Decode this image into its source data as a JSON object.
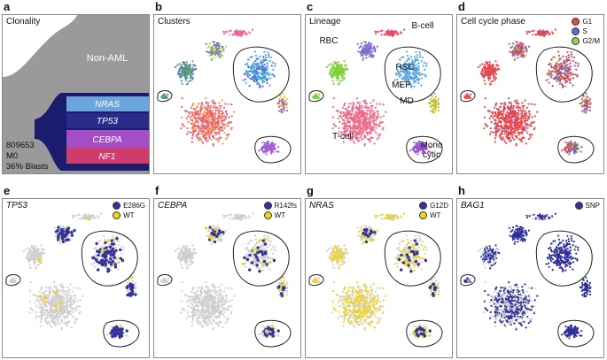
{
  "panels": {
    "a": {
      "letter": "a",
      "title": "Clonality",
      "non_aml_label": "Non-AML",
      "clones": [
        {
          "label": "NRAS",
          "color": "#6aa6dc"
        },
        {
          "label": "TP53",
          "color": "#2b2b8c"
        },
        {
          "label": "CEBPA",
          "color": "#a24fc7"
        },
        {
          "label": "NF1",
          "color": "#cf3b6b"
        }
      ],
      "sample_id": "809653",
      "subtype": "M0",
      "blasts": "36% Blasts"
    },
    "b": {
      "letter": "b",
      "title": "Clusters"
    },
    "c": {
      "letter": "c",
      "title": "Lineage",
      "labels": {
        "rbc": "RBC",
        "bcell": "B-cell",
        "hsc": "HSC",
        "mep": "MEP",
        "md": "MD",
        "tcell": "T-cell",
        "mono1": "Mono",
        "mono2": "cytic"
      }
    },
    "d": {
      "letter": "d",
      "title": "Cell cycle phase",
      "legend": [
        {
          "label": "G1",
          "color": "#e8474c"
        },
        {
          "label": "S",
          "color": "#6f5fcf"
        },
        {
          "label": "G2/M",
          "color": "#8fd14f"
        }
      ]
    },
    "e": {
      "letter": "e",
      "title": "TP53",
      "legend": [
        {
          "label": "E286G",
          "color": "#33339a"
        },
        {
          "label": "WT",
          "color": "#f2d416"
        }
      ]
    },
    "f": {
      "letter": "f",
      "title": "CEBPA",
      "legend": [
        {
          "label": "R142fs",
          "color": "#33339a"
        },
        {
          "label": "WT",
          "color": "#f2d416"
        }
      ]
    },
    "g": {
      "letter": "g",
      "title": "NRAS",
      "legend": [
        {
          "label": "G12D",
          "color": "#33339a"
        },
        {
          "label": "WT",
          "color": "#f2d416"
        }
      ]
    },
    "h": {
      "letter": "h",
      "title": "BAG1",
      "legend": [
        {
          "label": "SNP",
          "color": "#33339a"
        }
      ]
    }
  },
  "colors": {
    "background_cell": "#cfcfcf",
    "non_aml": "#9a9a9a",
    "cluster_palette": [
      "#e8578b",
      "#5b6fd6",
      "#f39a4c",
      "#d4d93a",
      "#4fb84f",
      "#a45fd0",
      "#e86a6a",
      "#3bb3d8",
      "#f07ca8",
      "#8c7a4a"
    ],
    "lineage": {
      "rbc": "#7fcf3b",
      "bcell": "#e84a6a",
      "hsc": "#5aa8e0",
      "mep": "#7a6fd0",
      "md": "#c8c23a",
      "tcell": "#f06a8a",
      "mono": "#9a55d2"
    }
  }
}
